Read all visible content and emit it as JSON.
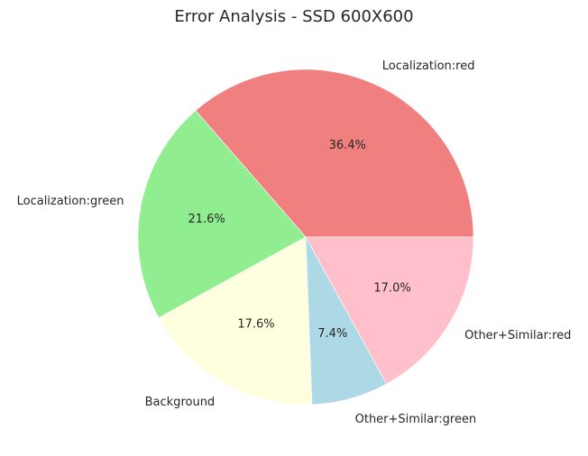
{
  "chart_data": {
    "type": "pie",
    "title": "Error Analysis - SSD 600X600",
    "labels": [
      "Localization:red",
      "Localization:green",
      "Background",
      "Other+Similar:green",
      "Other+Similar:red"
    ],
    "values": [
      36.4,
      21.6,
      17.6,
      7.4,
      17.0
    ],
    "value_labels": [
      "36.4%",
      "21.6%",
      "17.6%",
      "7.4%",
      "17.0%"
    ],
    "colors": [
      "#f08080",
      "#90ee90",
      "#ffffe0",
      "#add8e6",
      "#ffc0cb"
    ],
    "start_angle_deg": 0,
    "direction": "counterclockwise"
  }
}
